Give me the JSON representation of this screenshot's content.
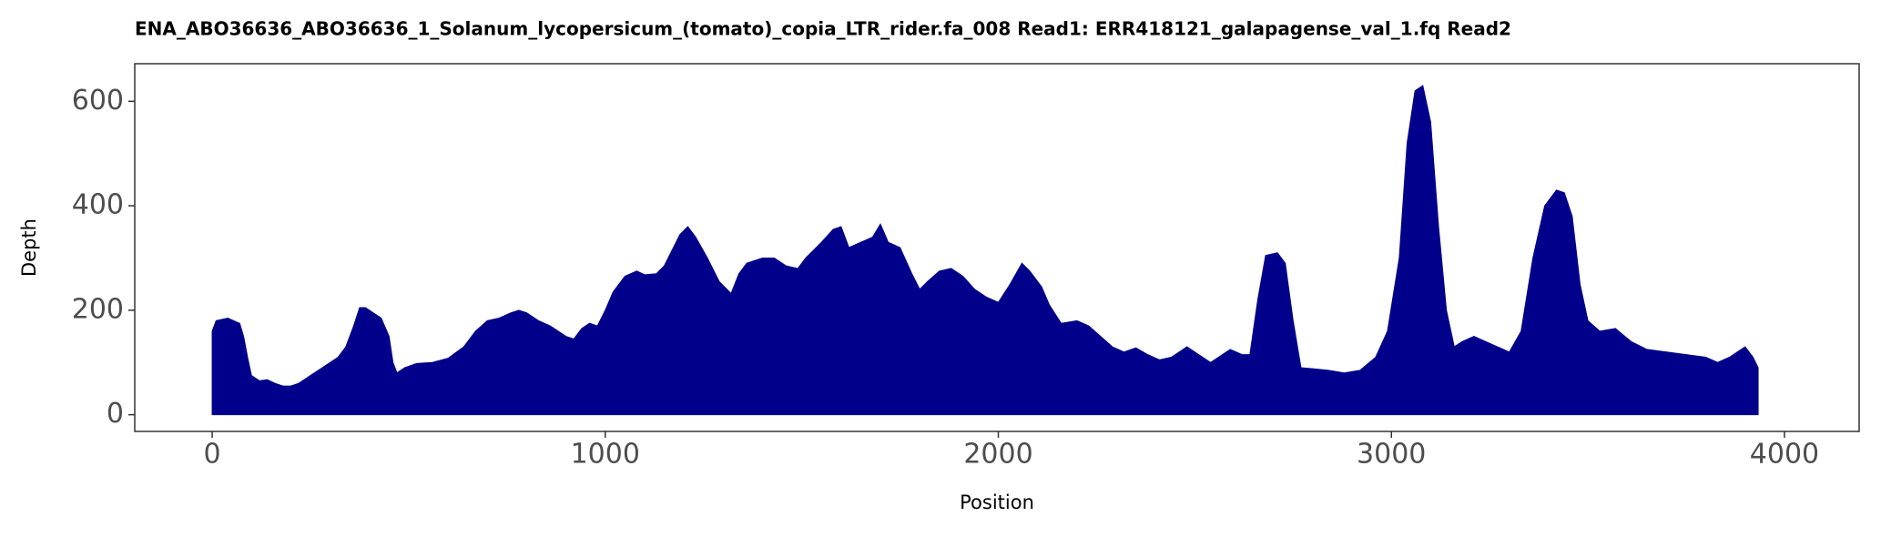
{
  "chart_data": {
    "type": "area",
    "title": "ENA_ABO36636_ABO36636_1_Solanum_lycopersicum_(tomato)_copia_LTR_rider.fa_008   Read1: ERR418121_galapagense_val_1.fq   Read2",
    "x_label": "Position",
    "y_label": "Depth",
    "color": "#00008b",
    "xlim": [
      -197,
      4190
    ],
    "ylim": [
      -32,
      672
    ],
    "xticks": [
      0,
      1000,
      2000,
      3000,
      4000
    ],
    "yticks": [
      0,
      200,
      400,
      600
    ],
    "grid": false,
    "x": [
      0,
      10,
      40,
      60,
      70,
      80,
      90,
      100,
      120,
      140,
      160,
      180,
      200,
      220,
      250,
      280,
      300,
      320,
      340,
      360,
      375,
      390,
      410,
      430,
      450,
      460,
      470,
      490,
      520,
      560,
      600,
      640,
      670,
      700,
      730,
      760,
      780,
      800,
      830,
      860,
      880,
      900,
      920,
      940,
      960,
      980,
      1000,
      1020,
      1050,
      1080,
      1100,
      1130,
      1150,
      1170,
      1190,
      1210,
      1230,
      1260,
      1290,
      1320,
      1340,
      1360,
      1400,
      1430,
      1460,
      1490,
      1510,
      1550,
      1580,
      1600,
      1620,
      1650,
      1680,
      1700,
      1720,
      1750,
      1780,
      1800,
      1820,
      1850,
      1880,
      1910,
      1940,
      1970,
      2000,
      2030,
      2060,
      2080,
      2110,
      2130,
      2160,
      2200,
      2230,
      2260,
      2290,
      2320,
      2350,
      2380,
      2410,
      2440,
      2480,
      2510,
      2540,
      2560,
      2590,
      2620,
      2640,
      2660,
      2680,
      2710,
      2730,
      2750,
      2770,
      2800,
      2840,
      2880,
      2920,
      2960,
      2990,
      3020,
      3040,
      3060,
      3080,
      3100,
      3120,
      3140,
      3160,
      3180,
      3210,
      3240,
      3270,
      3300,
      3330,
      3360,
      3390,
      3420,
      3440,
      3460,
      3480,
      3500,
      3530,
      3570,
      3610,
      3650,
      3700,
      3750,
      3800,
      3830,
      3860,
      3890,
      3900,
      3920,
      3933
    ],
    "values": [
      160,
      180,
      185,
      178,
      175,
      150,
      110,
      75,
      65,
      67,
      60,
      55,
      55,
      60,
      75,
      90,
      100,
      110,
      130,
      170,
      205,
      205,
      195,
      185,
      150,
      100,
      80,
      90,
      98,
      100,
      108,
      130,
      160,
      180,
      185,
      195,
      200,
      195,
      180,
      170,
      160,
      150,
      145,
      165,
      175,
      170,
      200,
      235,
      265,
      275,
      268,
      270,
      285,
      315,
      345,
      360,
      340,
      300,
      255,
      232,
      270,
      290,
      300,
      300,
      285,
      280,
      300,
      330,
      355,
      360,
      320,
      330,
      340,
      365,
      330,
      320,
      270,
      240,
      255,
      275,
      280,
      265,
      240,
      225,
      215,
      250,
      290,
      275,
      245,
      210,
      175,
      180,
      170,
      150,
      130,
      120,
      128,
      115,
      105,
      110,
      130,
      115,
      100,
      110,
      125,
      115,
      115,
      220,
      305,
      310,
      290,
      180,
      90,
      88,
      85,
      80,
      85,
      110,
      160,
      300,
      520,
      620,
      630,
      560,
      360,
      200,
      130,
      140,
      150,
      140,
      130,
      120,
      160,
      300,
      400,
      430,
      425,
      380,
      250,
      180,
      160,
      165,
      140,
      125,
      120,
      115,
      110,
      100,
      110,
      125,
      130,
      110,
      90
    ]
  }
}
